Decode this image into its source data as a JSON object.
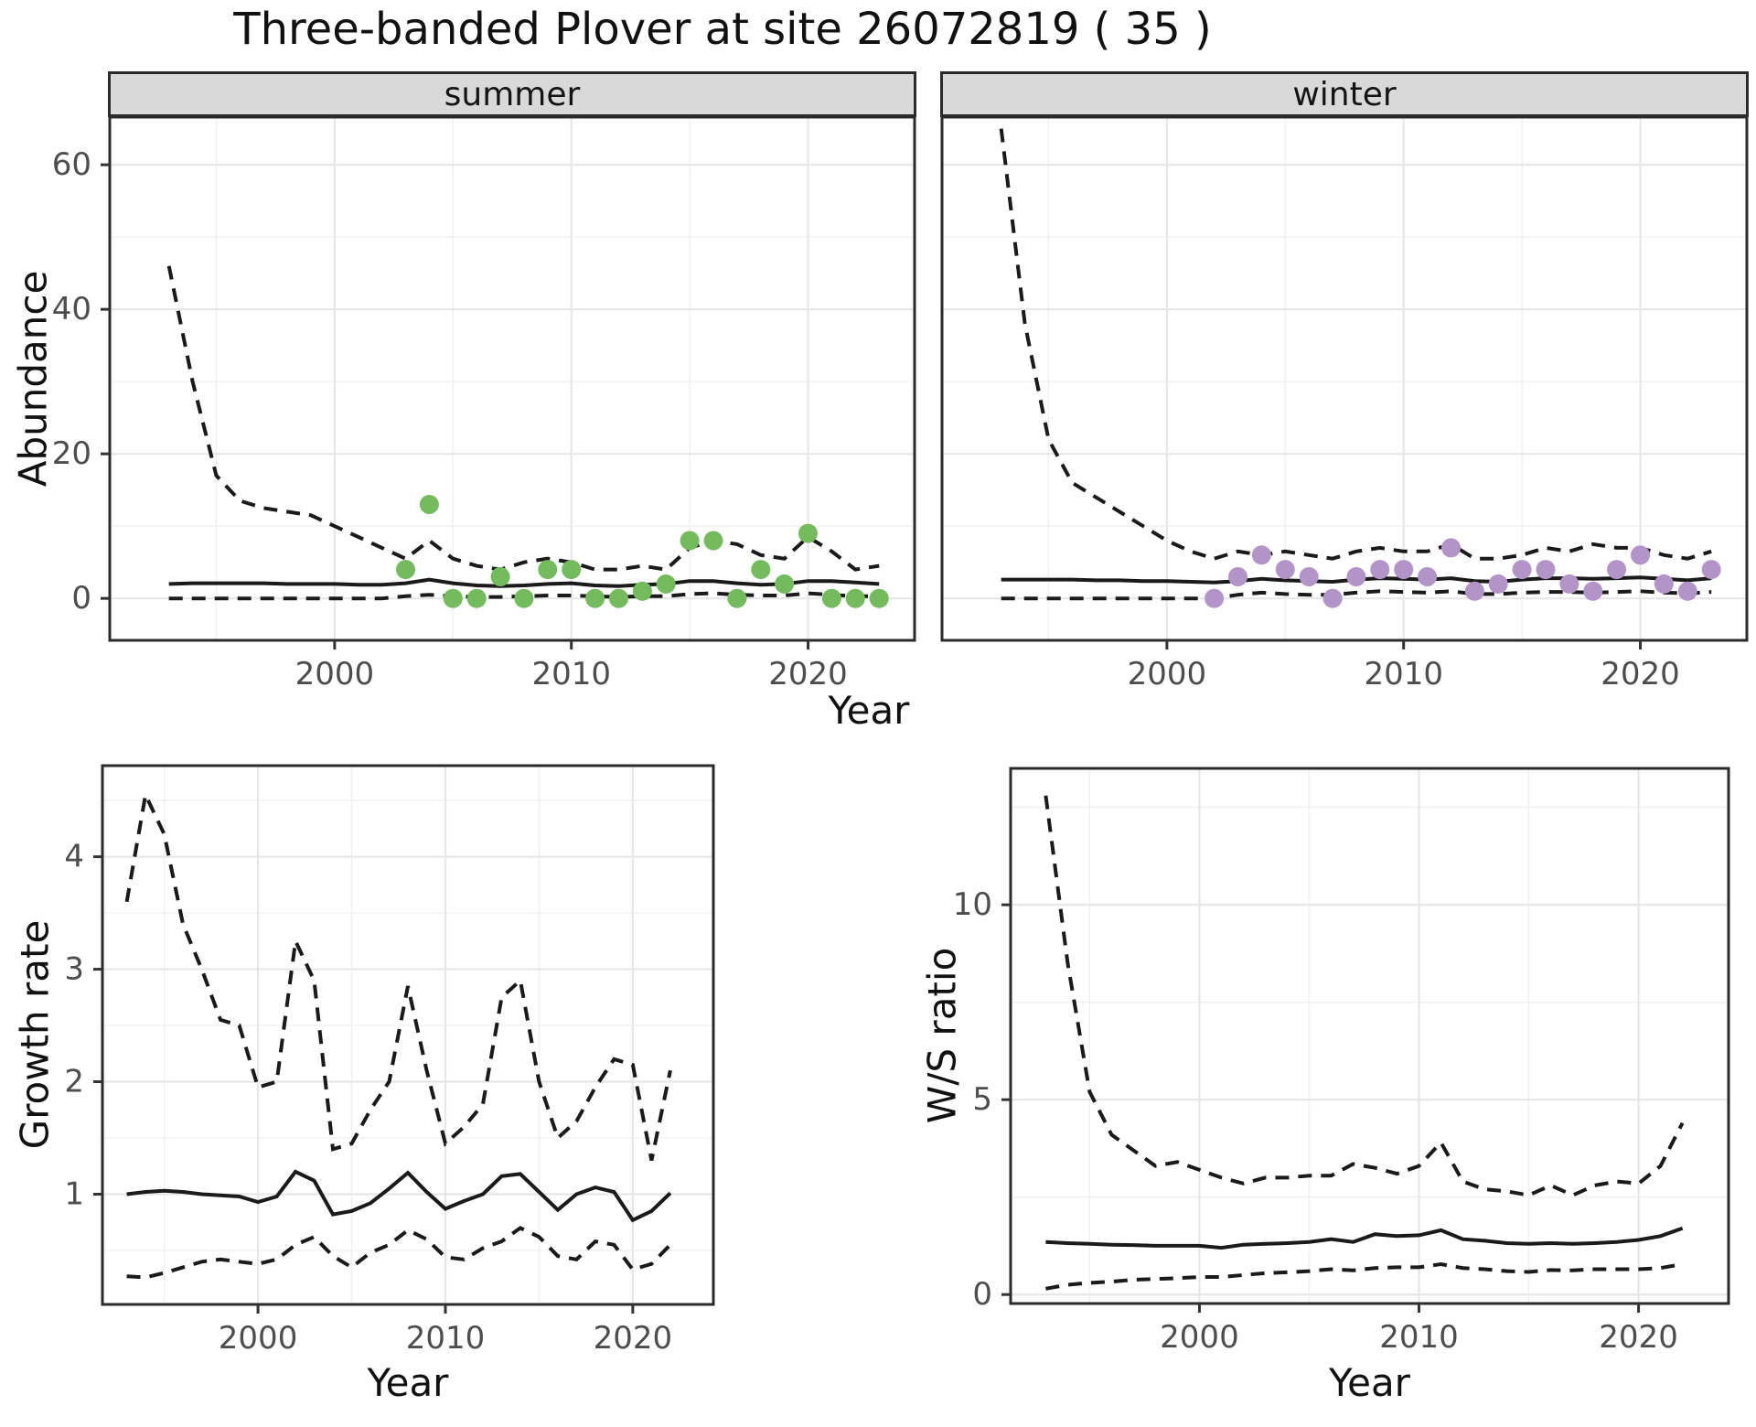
{
  "figure": {
    "title": "Three-banded Plover at site 26072819 ( 35 )"
  },
  "colors": {
    "line": "#1a1a1a",
    "grid_major": "#e7e7e7",
    "grid_minor": "#f0f0f0",
    "panel_border": "#2b2b2b",
    "strip_background": "#d9d9d9",
    "tick_text": "#4d4d4d",
    "summer_point": "#74bb5e",
    "winter_point": "#b294c8"
  },
  "chart_data": [
    {
      "id": "abundance-summer",
      "type": "line",
      "facet_label": "summer",
      "ylabel": "Abundance",
      "xlabel": "Year",
      "xlim": [
        1990.5,
        2024.5
      ],
      "ylim": [
        -5.8,
        66.6
      ],
      "xticks": [
        2000,
        2010,
        2020
      ],
      "xticks_minor": [
        1995,
        2005,
        2015
      ],
      "yticks": [
        0,
        20,
        40,
        60
      ],
      "yticks_minor": [
        10,
        30,
        50
      ],
      "grid": true,
      "point_color": "#74bb5e",
      "series": [
        {
          "name": "upper95",
          "style": "dashed",
          "x": [
            1993,
            1994,
            1995,
            1996,
            1997,
            1998,
            1999,
            2000,
            2001,
            2002,
            2003,
            2004,
            2005,
            2006,
            2007,
            2008,
            2009,
            2010,
            2011,
            2012,
            2013,
            2014,
            2015,
            2016,
            2017,
            2018,
            2019,
            2020,
            2021,
            2022,
            2023
          ],
          "values": [
            46,
            30,
            17,
            13.5,
            12.5,
            12,
            11.5,
            10,
            8.5,
            7,
            5.5,
            8,
            5.5,
            4.5,
            4,
            5,
            5.5,
            5,
            4,
            4,
            4.5,
            4,
            7,
            8,
            7.5,
            6,
            5.5,
            8.5,
            6.5,
            4,
            4.5
          ]
        },
        {
          "name": "mean",
          "style": "solid",
          "x": [
            1993,
            1994,
            1995,
            1996,
            1997,
            1998,
            1999,
            2000,
            2001,
            2002,
            2003,
            2004,
            2005,
            2006,
            2007,
            2008,
            2009,
            2010,
            2011,
            2012,
            2013,
            2014,
            2015,
            2016,
            2017,
            2018,
            2019,
            2020,
            2021,
            2022,
            2023
          ],
          "values": [
            2.0,
            2.1,
            2.1,
            2.1,
            2.1,
            2.0,
            2.0,
            2.0,
            1.9,
            1.9,
            2.1,
            2.6,
            2.1,
            1.8,
            1.7,
            1.8,
            2.0,
            2.1,
            1.8,
            1.7,
            1.9,
            2.0,
            2.4,
            2.4,
            2.1,
            1.9,
            2.0,
            2.4,
            2.4,
            2.2,
            2.0
          ]
        },
        {
          "name": "lower95",
          "style": "dashed",
          "x": [
            1993,
            1994,
            1995,
            1996,
            1997,
            1998,
            1999,
            2000,
            2001,
            2002,
            2003,
            2004,
            2005,
            2006,
            2007,
            2008,
            2009,
            2010,
            2011,
            2012,
            2013,
            2014,
            2015,
            2016,
            2017,
            2018,
            2019,
            2020,
            2021,
            2022,
            2023
          ],
          "values": [
            0,
            0,
            0,
            0,
            0,
            0,
            0,
            0,
            0,
            0,
            0.3,
            0.5,
            0.3,
            0.2,
            0.2,
            0.3,
            0.4,
            0.4,
            0.3,
            0.2,
            0.3,
            0.3,
            0.6,
            0.7,
            0.5,
            0.4,
            0.4,
            0.7,
            0.5,
            0.3,
            0.3
          ]
        }
      ],
      "points": {
        "x": [
          2003,
          2004,
          2005,
          2006,
          2007,
          2008,
          2009,
          2010,
          2011,
          2012,
          2013,
          2014,
          2015,
          2016,
          2017,
          2018,
          2019,
          2020,
          2021,
          2022,
          2023
        ],
        "y": [
          4,
          13,
          0,
          0,
          3,
          0,
          4,
          4,
          0,
          0,
          1,
          2,
          8,
          8,
          0,
          4,
          2,
          9,
          0,
          0,
          0
        ]
      }
    },
    {
      "id": "abundance-winter",
      "type": "line",
      "facet_label": "winter",
      "ylabel": "Abundance",
      "xlabel": "Year",
      "xlim": [
        1990.5,
        2024.5
      ],
      "ylim": [
        -5.8,
        66.6
      ],
      "xticks": [
        2000,
        2010,
        2020
      ],
      "xticks_minor": [
        1995,
        2005,
        2015
      ],
      "yticks": [
        0,
        20,
        40,
        60
      ],
      "yticks_minor": [
        10,
        30,
        50
      ],
      "grid": true,
      "point_color": "#b294c8",
      "series": [
        {
          "name": "upper95",
          "style": "dashed",
          "x": [
            1993,
            1994,
            1995,
            1996,
            1997,
            1998,
            1999,
            2000,
            2001,
            2002,
            2003,
            2004,
            2005,
            2006,
            2007,
            2008,
            2009,
            2010,
            2011,
            2012,
            2013,
            2014,
            2015,
            2016,
            2017,
            2018,
            2019,
            2020,
            2021,
            2022,
            2023
          ],
          "values": [
            65,
            38,
            22,
            16,
            14,
            12,
            10,
            8,
            6.5,
            5.5,
            6.5,
            6,
            6.5,
            6,
            5.5,
            6.5,
            7,
            6.5,
            6.5,
            7.5,
            5.5,
            5.5,
            6,
            7,
            6.5,
            7.5,
            7,
            7,
            6,
            5.5,
            6.5
          ]
        },
        {
          "name": "mean",
          "style": "solid",
          "x": [
            1993,
            1994,
            1995,
            1996,
            1997,
            1998,
            1999,
            2000,
            2001,
            2002,
            2003,
            2004,
            2005,
            2006,
            2007,
            2008,
            2009,
            2010,
            2011,
            2012,
            2013,
            2014,
            2015,
            2016,
            2017,
            2018,
            2019,
            2020,
            2021,
            2022,
            2023
          ],
          "values": [
            2.6,
            2.6,
            2.6,
            2.6,
            2.5,
            2.5,
            2.4,
            2.4,
            2.3,
            2.2,
            2.4,
            2.7,
            2.5,
            2.4,
            2.3,
            2.6,
            2.8,
            2.7,
            2.6,
            2.8,
            2.4,
            2.3,
            2.6,
            2.8,
            2.8,
            2.7,
            2.8,
            2.9,
            2.7,
            2.5,
            2.8
          ]
        },
        {
          "name": "lower95",
          "style": "dashed",
          "x": [
            1993,
            1994,
            1995,
            1996,
            1997,
            1998,
            1999,
            2000,
            2001,
            2002,
            2003,
            2004,
            2005,
            2006,
            2007,
            2008,
            2009,
            2010,
            2011,
            2012,
            2013,
            2014,
            2015,
            2016,
            2017,
            2018,
            2019,
            2020,
            2021,
            2022,
            2023
          ],
          "values": [
            0,
            0,
            0,
            0,
            0,
            0,
            0,
            0,
            0,
            0,
            0.5,
            0.8,
            0.6,
            0.5,
            0.5,
            0.8,
            1,
            0.9,
            0.8,
            1,
            0.6,
            0.6,
            0.8,
            0.9,
            0.9,
            0.8,
            0.9,
            1,
            0.8,
            0.7,
            0.9
          ]
        }
      ],
      "points": {
        "x": [
          2002,
          2003,
          2004,
          2005,
          2006,
          2007,
          2008,
          2009,
          2010,
          2011,
          2012,
          2013,
          2014,
          2015,
          2016,
          2017,
          2018,
          2019,
          2020,
          2021,
          2022,
          2023
        ],
        "y": [
          0,
          3,
          6,
          4,
          3,
          0,
          3,
          4,
          4,
          3,
          7,
          1,
          2,
          4,
          4,
          2,
          1,
          4,
          6,
          2,
          1,
          4
        ]
      }
    },
    {
      "id": "growth-rate",
      "type": "line",
      "facet_label": "",
      "ylabel": "Growth rate",
      "xlabel": "Year",
      "xlim": [
        1991.7,
        2024.3
      ],
      "ylim": [
        0.02,
        4.81
      ],
      "xticks": [
        2000,
        2010,
        2020
      ],
      "xticks_minor": [
        1995,
        2005,
        2015
      ],
      "yticks": [
        1,
        2,
        3,
        4
      ],
      "yticks_minor": [
        0.5,
        1.5,
        2.5,
        3.5,
        4.5
      ],
      "grid": true,
      "series": [
        {
          "name": "upper95",
          "style": "dashed",
          "x": [
            1993,
            1994,
            1995,
            1996,
            1997,
            1998,
            1999,
            2000,
            2001,
            2002,
            2003,
            2004,
            2005,
            2006,
            2007,
            2008,
            2009,
            2010,
            2011,
            2012,
            2013,
            2014,
            2015,
            2016,
            2017,
            2018,
            2019,
            2020,
            2021,
            2022
          ],
          "values": [
            3.6,
            4.55,
            4.2,
            3.4,
            3.0,
            2.55,
            2.5,
            1.95,
            2.0,
            3.25,
            2.9,
            1.4,
            1.45,
            1.75,
            2.0,
            2.85,
            2.1,
            1.45,
            1.6,
            1.8,
            2.75,
            2.9,
            2.0,
            1.5,
            1.65,
            1.95,
            2.2,
            2.15,
            1.3,
            2.1
          ]
        },
        {
          "name": "median",
          "style": "solid",
          "x": [
            1993,
            1994,
            1995,
            1996,
            1997,
            1998,
            1999,
            2000,
            2001,
            2002,
            2003,
            2004,
            2005,
            2006,
            2007,
            2008,
            2009,
            2010,
            2011,
            2012,
            2013,
            2014,
            2015,
            2016,
            2017,
            2018,
            2019,
            2020,
            2021,
            2022
          ],
          "values": [
            1.0,
            1.02,
            1.03,
            1.02,
            1.0,
            0.99,
            0.98,
            0.93,
            0.98,
            1.2,
            1.12,
            0.82,
            0.85,
            0.92,
            1.05,
            1.19,
            1.02,
            0.87,
            0.94,
            1.0,
            1.16,
            1.18,
            1.02,
            0.86,
            1.0,
            1.06,
            1.02,
            0.77,
            0.85,
            1.01
          ]
        },
        {
          "name": "lower95",
          "style": "dashed",
          "x": [
            1993,
            1994,
            1995,
            1996,
            1997,
            1998,
            1999,
            2000,
            2001,
            2002,
            2003,
            2004,
            2005,
            2006,
            2007,
            2008,
            2009,
            2010,
            2011,
            2012,
            2013,
            2014,
            2015,
            2016,
            2017,
            2018,
            2019,
            2020,
            2021,
            2022
          ],
          "values": [
            0.27,
            0.26,
            0.3,
            0.35,
            0.4,
            0.42,
            0.4,
            0.38,
            0.42,
            0.55,
            0.62,
            0.45,
            0.35,
            0.48,
            0.55,
            0.68,
            0.6,
            0.44,
            0.42,
            0.52,
            0.58,
            0.7,
            0.62,
            0.45,
            0.42,
            0.58,
            0.55,
            0.33,
            0.38,
            0.55
          ]
        }
      ]
    },
    {
      "id": "ws-ratio",
      "type": "line",
      "facet_label": "",
      "ylabel": "W/S ratio",
      "xlabel": "Year",
      "xlim": [
        1991.4,
        2024.1
      ],
      "ylim": [
        -0.23,
        13.5
      ],
      "xticks": [
        2000,
        2010,
        2020
      ],
      "xticks_minor": [
        1995,
        2005,
        2015
      ],
      "yticks": [
        0,
        5,
        10
      ],
      "yticks_minor": [
        2.5,
        7.5,
        12.5
      ],
      "grid": true,
      "series": [
        {
          "name": "upper95",
          "style": "dashed",
          "x": [
            1993,
            1994,
            1995,
            1996,
            1997,
            1998,
            1999,
            2000,
            2001,
            2002,
            2003,
            2004,
            2005,
            2006,
            2007,
            2008,
            2009,
            2010,
            2011,
            2012,
            2013,
            2014,
            2015,
            2016,
            2017,
            2018,
            2019,
            2020,
            2021,
            2022
          ],
          "values": [
            12.8,
            8.5,
            5.2,
            4.1,
            3.7,
            3.3,
            3.4,
            3.2,
            3.0,
            2.85,
            3.0,
            3.0,
            3.05,
            3.05,
            3.35,
            3.25,
            3.1,
            3.3,
            3.9,
            2.9,
            2.7,
            2.65,
            2.55,
            2.8,
            2.55,
            2.8,
            2.9,
            2.85,
            3.3,
            4.4
          ]
        },
        {
          "name": "median",
          "style": "solid",
          "x": [
            1993,
            1994,
            1995,
            1996,
            1997,
            1998,
            1999,
            2000,
            2001,
            2002,
            2003,
            2004,
            2005,
            2006,
            2007,
            2008,
            2009,
            2010,
            2011,
            2012,
            2013,
            2014,
            2015,
            2016,
            2017,
            2018,
            2019,
            2020,
            2021,
            2022
          ],
          "values": [
            1.35,
            1.32,
            1.3,
            1.28,
            1.27,
            1.25,
            1.25,
            1.25,
            1.2,
            1.28,
            1.3,
            1.32,
            1.35,
            1.42,
            1.35,
            1.55,
            1.5,
            1.52,
            1.65,
            1.42,
            1.38,
            1.32,
            1.3,
            1.32,
            1.3,
            1.32,
            1.35,
            1.4,
            1.5,
            1.7
          ]
        },
        {
          "name": "lower95",
          "style": "dashed",
          "x": [
            1993,
            1994,
            1995,
            1996,
            1997,
            1998,
            1999,
            2000,
            2001,
            2002,
            2003,
            2004,
            2005,
            2006,
            2007,
            2008,
            2009,
            2010,
            2011,
            2012,
            2013,
            2014,
            2015,
            2016,
            2017,
            2018,
            2019,
            2020,
            2021,
            2022
          ],
          "values": [
            0.15,
            0.25,
            0.3,
            0.33,
            0.38,
            0.4,
            0.42,
            0.45,
            0.45,
            0.5,
            0.55,
            0.57,
            0.6,
            0.65,
            0.62,
            0.68,
            0.7,
            0.7,
            0.78,
            0.68,
            0.65,
            0.6,
            0.58,
            0.63,
            0.62,
            0.65,
            0.65,
            0.65,
            0.68,
            0.78
          ]
        }
      ]
    }
  ]
}
